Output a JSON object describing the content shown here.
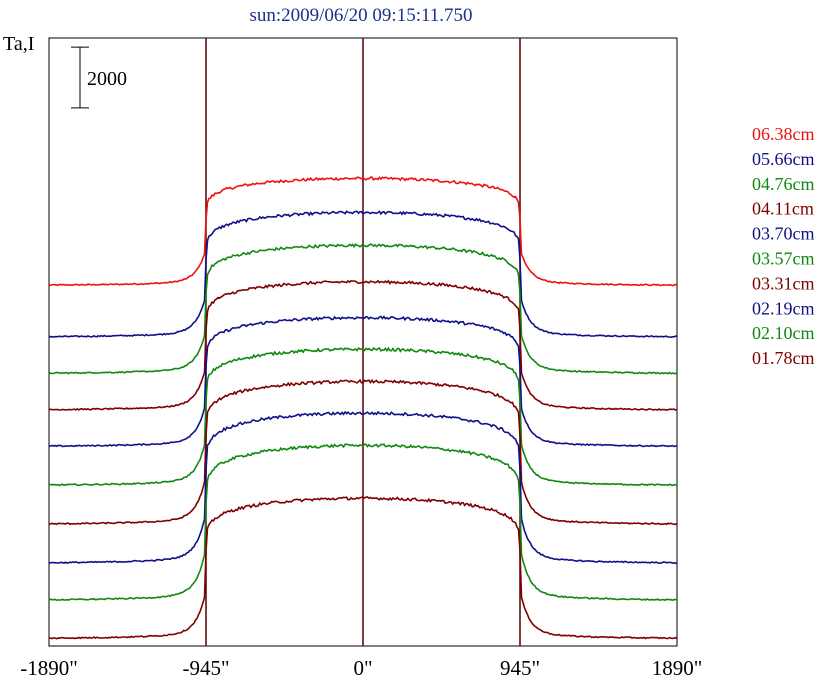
{
  "chart_data": {
    "type": "line",
    "title": "sun:2009/06/20 09:15:11.750",
    "ylabel": "Ta,I",
    "scale_bar_label": "2000",
    "scale_bar_value": 2000,
    "xlim": [
      -1890,
      1890
    ],
    "ylim": [
      0,
      20000
    ],
    "x_ticks": [
      {
        "value": -1890,
        "label": "-1890\""
      },
      {
        "value": -945,
        "label": "-945\""
      },
      {
        "value": 0,
        "label": "0\""
      },
      {
        "value": 945,
        "label": "945\""
      },
      {
        "value": 1890,
        "label": "1890\""
      }
    ],
    "vertical_lines": [
      -945,
      0,
      945
    ],
    "colors": {
      "title": "#1b2f8c",
      "red": "#ee1111",
      "blue": "#10108a",
      "green": "#118811",
      "maroon": "#800000"
    },
    "series": [
      {
        "name": "06.38cm",
        "color": "#ee1111",
        "baseline": 11860,
        "plateau": 15380
      },
      {
        "name": "05.66cm",
        "color": "#10108a",
        "baseline": 10160,
        "plateau": 14260
      },
      {
        "name": "04.76cm",
        "color": "#118811",
        "baseline": 8960,
        "plateau": 13180
      },
      {
        "name": "04.11cm",
        "color": "#800000",
        "baseline": 7760,
        "plateau": 11980
      },
      {
        "name": "03.70cm",
        "color": "#10108a",
        "baseline": 6560,
        "plateau": 10800
      },
      {
        "name": "03.57cm",
        "color": "#118811",
        "baseline": 5280,
        "plateau": 9760
      },
      {
        "name": "03.31cm",
        "color": "#800000",
        "baseline": 4000,
        "plateau": 8700
      },
      {
        "name": "02.19cm",
        "color": "#10108a",
        "baseline": 2720,
        "plateau": 7660
      },
      {
        "name": "02.10cm",
        "color": "#118811",
        "baseline": 1500,
        "plateau": 6600
      },
      {
        "name": "01.78cm",
        "color": "#800000",
        "baseline": 240,
        "plateau": 4860
      }
    ]
  }
}
